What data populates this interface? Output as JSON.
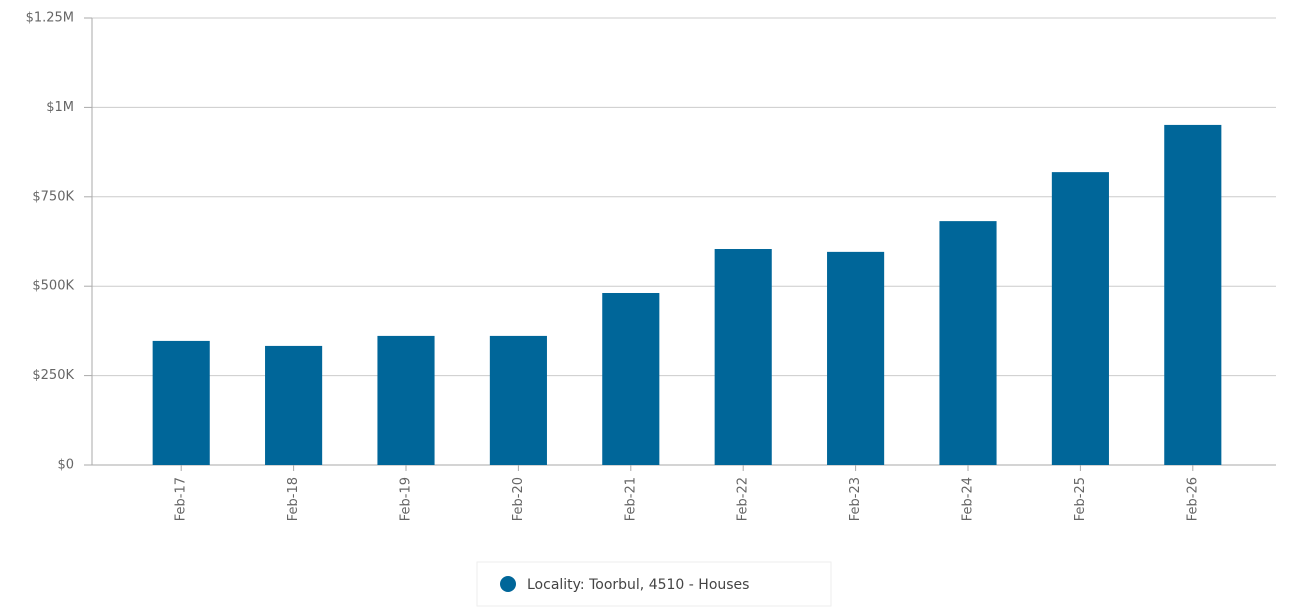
{
  "chart_data": {
    "type": "bar",
    "categories": [
      "Feb-17",
      "Feb-18",
      "Feb-19",
      "Feb-20",
      "Feb-21",
      "Feb-22",
      "Feb-23",
      "Feb-24",
      "Feb-25",
      "Feb-26"
    ],
    "series": [
      {
        "name": "Locality: Toorbul, 4510 - Houses",
        "color": "#006699",
        "values": [
          347000,
          333000,
          361000,
          361000,
          481000,
          604000,
          596000,
          682000,
          819000,
          951000
        ]
      }
    ],
    "ylim": [
      0,
      1250000
    ],
    "yticks": [
      {
        "value": 0,
        "label": "$0"
      },
      {
        "value": 250000,
        "label": "$250K"
      },
      {
        "value": 500000,
        "label": "$500K"
      },
      {
        "value": 750000,
        "label": "$750K"
      },
      {
        "value": 1000000,
        "label": "$1M"
      },
      {
        "value": 1250000,
        "label": "$1.25M"
      }
    ],
    "grid": true,
    "legend": "bottom"
  }
}
